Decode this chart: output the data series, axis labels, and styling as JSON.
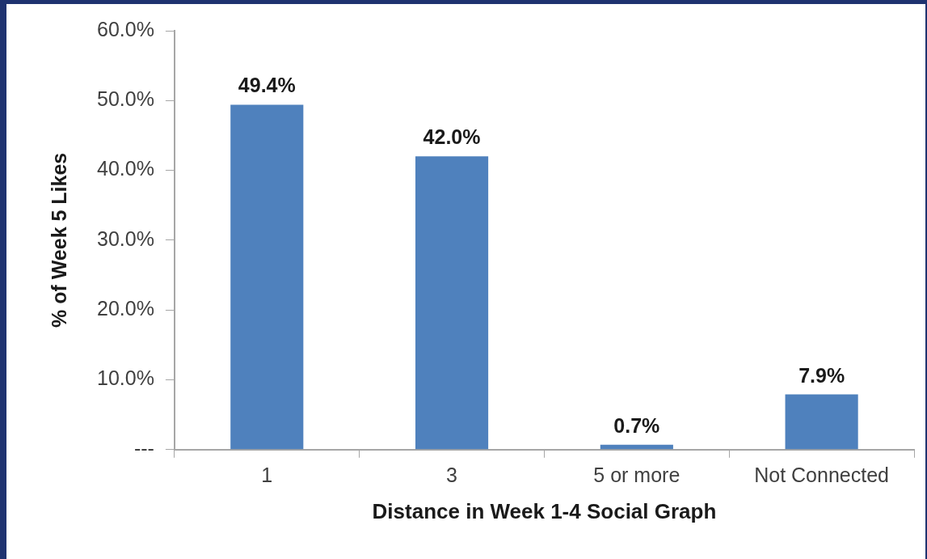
{
  "chart_data": {
    "type": "bar",
    "xlabel": "Distance in Week 1-4 Social Graph",
    "ylabel": "% of Week 5 Likes",
    "categories": [
      "1",
      "3",
      "5 or more",
      "Not Connected"
    ],
    "values": [
      49.4,
      42.0,
      0.7,
      7.9
    ],
    "value_labels": [
      "49.4%",
      "42.0%",
      "0.7%",
      "7.9%"
    ],
    "color": "#4f81bd",
    "ylim": [
      0,
      60
    ],
    "yticks": [
      {
        "value": 0,
        "label": "---"
      },
      {
        "value": 10,
        "label": "10.0%"
      },
      {
        "value": 20,
        "label": "20.0%"
      },
      {
        "value": 30,
        "label": "30.0%"
      },
      {
        "value": 40,
        "label": "40.0%"
      },
      {
        "value": 50,
        "label": "50.0%"
      },
      {
        "value": 60,
        "label": "60.0%"
      }
    ],
    "grid": false,
    "legend": false
  }
}
